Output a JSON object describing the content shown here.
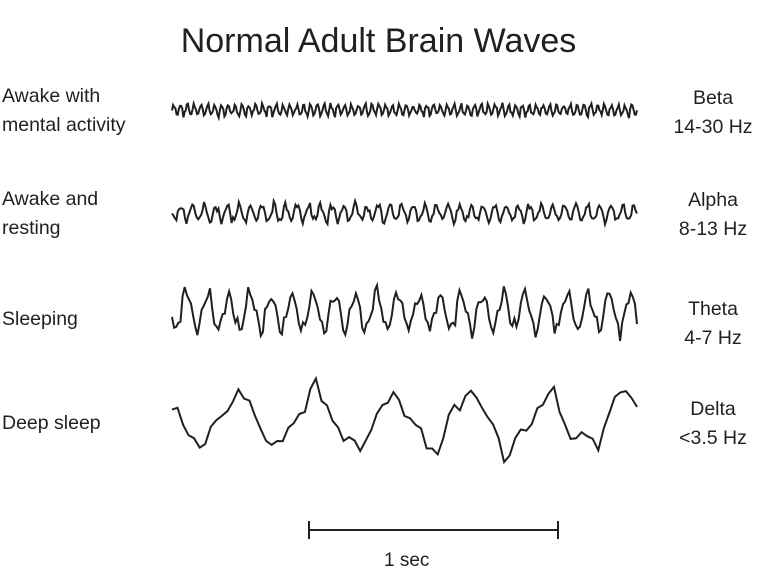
{
  "title": "Normal Adult Brain Waves",
  "rows": [
    {
      "state": [
        "Awake with",
        "mental activity"
      ],
      "wave": "Beta",
      "freq": "14-30 Hz"
    },
    {
      "state": [
        "Awake and",
        "resting"
      ],
      "wave": "Alpha",
      "freq": "8-13 Hz"
    },
    {
      "state": [
        "Sleeping"
      ],
      "wave": "Theta",
      "freq": "4-7 Hz"
    },
    {
      "state": [
        "Deep sleep"
      ],
      "wave": "Delta",
      "freq": "<3.5 Hz"
    }
  ],
  "scale_bar": {
    "label": "1 sec"
  },
  "stroke_color": "#231f20"
}
